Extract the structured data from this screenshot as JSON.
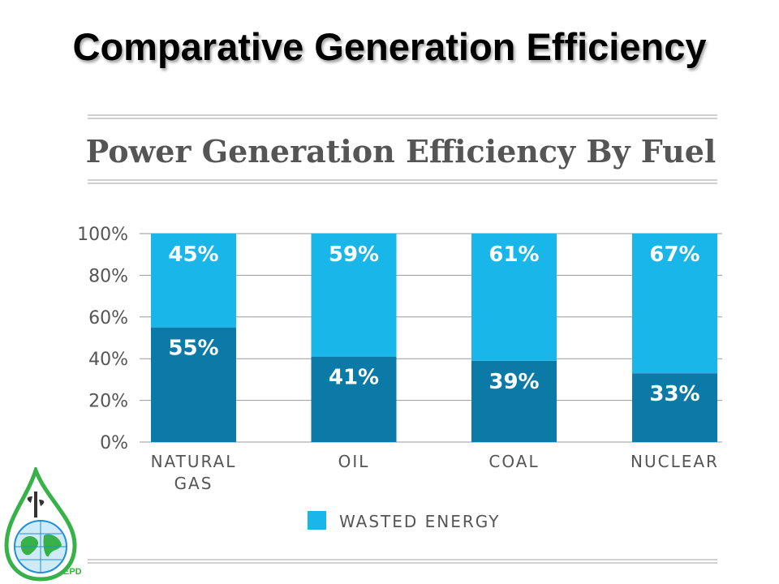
{
  "slide": {
    "title": "Comparative Generation Efficiency",
    "logo_text": "EPD"
  },
  "colors": {
    "wasted": "#19b6ea",
    "used": "#0c7aa6",
    "rules": "#b5b5b5",
    "chart_title": "#555555",
    "axis_text": "#555555",
    "logo_green": "#36b249",
    "logo_blue": "#1e90d8"
  },
  "chart_data": {
    "type": "bar",
    "stacked": true,
    "title": "Power Generation Efficiency By Fuel",
    "categories": [
      [
        "NATURAL",
        "GAS"
      ],
      [
        "OIL"
      ],
      [
        "COAL"
      ],
      [
        "NUCLEAR"
      ]
    ],
    "series": [
      {
        "values": [
          55,
          41,
          39,
          33
        ],
        "labels": [
          "55%",
          "41%",
          "39%",
          "33%"
        ],
        "color": "#0c7aa6"
      },
      {
        "name": "WASTED ENERGY",
        "values": [
          45,
          59,
          61,
          67
        ],
        "labels": [
          "45%",
          "59%",
          "61%",
          "67%"
        ],
        "color": "#19b6ea"
      }
    ],
    "ylim": [
      0,
      100
    ],
    "yticks": [
      0,
      20,
      40,
      60,
      80,
      100
    ],
    "ytick_labels": [
      "0%",
      "20%",
      "40%",
      "60%",
      "80%",
      "100%"
    ],
    "grid": true,
    "legend": {
      "position": "bottom-center"
    }
  }
}
